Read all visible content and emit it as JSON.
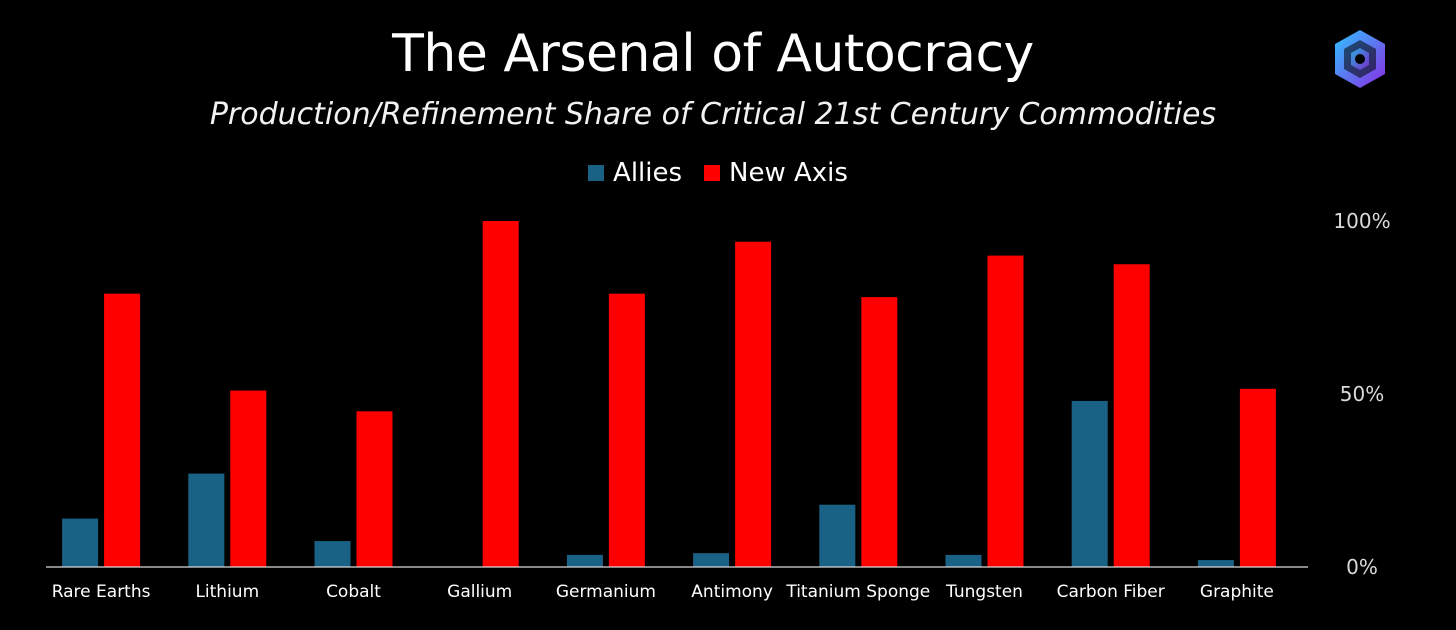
{
  "chart_data": {
    "type": "bar",
    "title": "The Arsenal of Autocracy",
    "subtitle": "Production/Refinement Share of Critical 21st Century Commodities",
    "categories": [
      "Rare Earths",
      "Lithium",
      "Cobalt",
      "Gallium",
      "Germanium",
      "Antimony",
      "Titanium Sponge",
      "Tungsten",
      "Carbon Fiber",
      "Graphite"
    ],
    "series": [
      {
        "name": "Allies",
        "color": "#1a6285",
        "values": [
          14,
          27,
          7.5,
          0,
          3.5,
          4,
          18,
          3.5,
          48,
          2
        ]
      },
      {
        "name": "New Axis",
        "color": "#ff0000",
        "values": [
          79,
          51,
          45,
          100,
          79,
          94,
          78,
          90,
          87.5,
          51.5
        ]
      }
    ],
    "ylim": [
      0,
      100
    ],
    "yticks": [
      "0%",
      "50%",
      "100%"
    ],
    "ytick_values": [
      0,
      50,
      100
    ],
    "legend_position": "top-center",
    "grid": false
  },
  "colors": {
    "background": "#000000",
    "allies": "#1a6285",
    "axis": "#ff0000"
  },
  "logo": {
    "icon": "hexagon-spiral-logo"
  }
}
